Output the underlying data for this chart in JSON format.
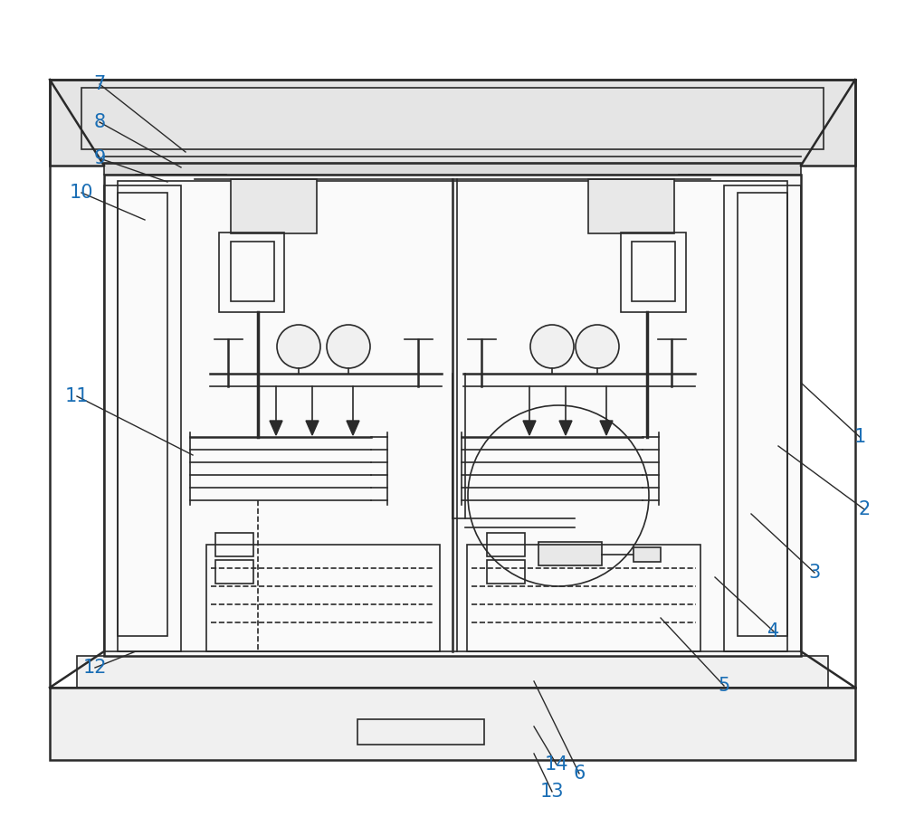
{
  "bg_color": "#ffffff",
  "line_color": "#2a2a2a",
  "label_color": "#1a6eb5",
  "label_fontsize": 15,
  "fig_width": 10.0,
  "fig_height": 9.13
}
